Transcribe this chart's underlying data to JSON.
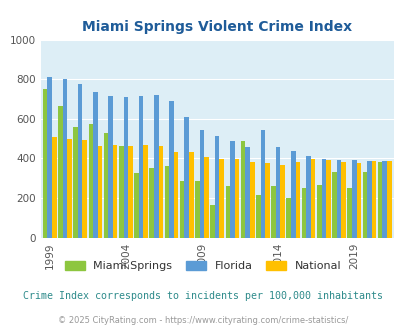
{
  "title": "Miami Springs Violent Crime Index",
  "years": [
    1999,
    2000,
    2001,
    2002,
    2003,
    2004,
    2005,
    2006,
    2007,
    2008,
    2009,
    2010,
    2011,
    2012,
    2013,
    2014,
    2015,
    2016,
    2017,
    2018,
    2019,
    2020,
    2021
  ],
  "miami_springs": [
    750,
    665,
    560,
    575,
    530,
    465,
    325,
    350,
    360,
    285,
    285,
    165,
    260,
    490,
    215,
    260,
    200,
    250,
    265,
    330,
    250,
    330,
    380
  ],
  "florida": [
    810,
    800,
    775,
    735,
    715,
    710,
    715,
    720,
    690,
    610,
    545,
    515,
    490,
    460,
    545,
    460,
    435,
    410,
    395,
    390,
    390,
    385,
    385
  ],
  "national": [
    510,
    500,
    495,
    465,
    470,
    465,
    470,
    465,
    430,
    430,
    405,
    395,
    395,
    380,
    375,
    365,
    380,
    395,
    390,
    380,
    375,
    385,
    385
  ],
  "miami_springs_color": "#8dc63f",
  "florida_color": "#5b9bd5",
  "national_color": "#ffc000",
  "bg_color": "#ddeef6",
  "ylim": [
    0,
    1000
  ],
  "yticks": [
    0,
    200,
    400,
    600,
    800,
    1000
  ],
  "xlabel_ticks": [
    1999,
    2004,
    2009,
    2014,
    2019
  ],
  "footnote": "Crime Index corresponds to incidents per 100,000 inhabitants",
  "copyright": "© 2025 CityRating.com - https://www.cityrating.com/crime-statistics/"
}
